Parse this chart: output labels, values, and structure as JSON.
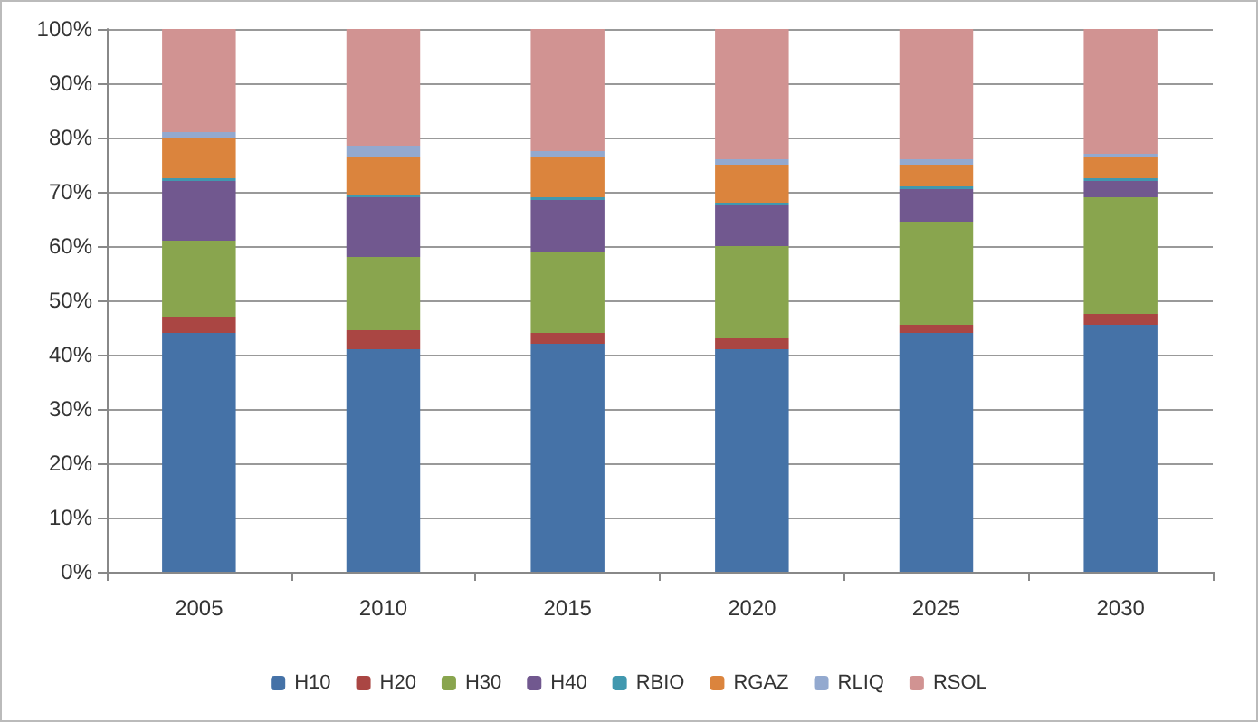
{
  "chart_data": {
    "type": "bar",
    "stacked": true,
    "categories": [
      "2005",
      "2010",
      "2015",
      "2020",
      "2025",
      "2030"
    ],
    "series": [
      {
        "name": "H10",
        "color": "#4572a7",
        "values": [
          44,
          41,
          42,
          41,
          44,
          45.5
        ]
      },
      {
        "name": "H20",
        "color": "#aa4643",
        "values": [
          3,
          3.5,
          2,
          2,
          1.5,
          2
        ]
      },
      {
        "name": "H30",
        "color": "#89a54e",
        "values": [
          14,
          13.5,
          15,
          17,
          19,
          21.5
        ]
      },
      {
        "name": "H40",
        "color": "#71588f",
        "values": [
          11,
          11,
          9.5,
          7.5,
          6,
          3
        ]
      },
      {
        "name": "RBIO",
        "color": "#4198af",
        "values": [
          0.5,
          0.5,
          0.5,
          0.5,
          0.5,
          0.5
        ]
      },
      {
        "name": "RGAZ",
        "color": "#db843d",
        "values": [
          7.5,
          7,
          7.5,
          7,
          4,
          4
        ]
      },
      {
        "name": "RLIQ",
        "color": "#93a9cf",
        "values": [
          1,
          2,
          1,
          1,
          1,
          0.5
        ]
      },
      {
        "name": "RSOL",
        "color": "#d19392",
        "values": [
          19,
          21.5,
          22.5,
          24,
          24,
          23
        ]
      }
    ],
    "ylim": [
      0,
      100
    ],
    "yticks": [
      {
        "value": 0,
        "label": "0%"
      },
      {
        "value": 10,
        "label": "10%"
      },
      {
        "value": 20,
        "label": "20%"
      },
      {
        "value": 30,
        "label": "30%"
      },
      {
        "value": 40,
        "label": "40%"
      },
      {
        "value": 50,
        "label": "50%"
      },
      {
        "value": 60,
        "label": "60%"
      },
      {
        "value": 70,
        "label": "70%"
      },
      {
        "value": 80,
        "label": "80%"
      },
      {
        "value": 90,
        "label": "90%"
      },
      {
        "value": 100,
        "label": "100%"
      }
    ],
    "grid": "y",
    "legend": "bottom"
  }
}
